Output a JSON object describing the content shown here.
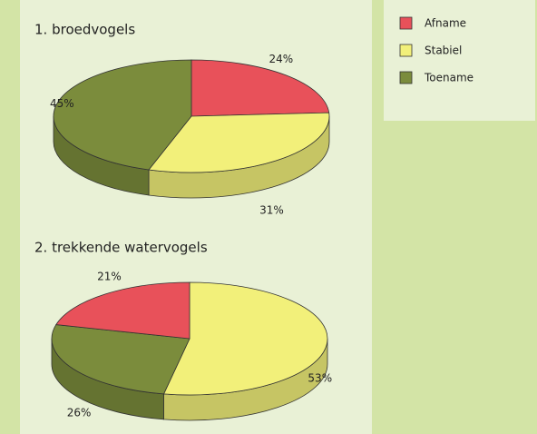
{
  "chart_data": [
    {
      "type": "pie",
      "title": "1. broedvogels",
      "values": [
        24,
        31,
        45
      ],
      "value_labels": [
        "24%",
        "31%",
        "45%"
      ],
      "colors": [
        "#e8515a",
        "#f2f07a",
        "#7b8c3c"
      ]
    },
    {
      "type": "pie",
      "title": "2. trekkende watervogels",
      "values": [
        53,
        26,
        21
      ],
      "value_labels": [
        "53%",
        "26%",
        "21%"
      ],
      "colors": [
        "#f2f07a",
        "#7b8c3c",
        "#e8515a"
      ]
    }
  ],
  "legend": {
    "labels": [
      "Afname",
      "Stabiel",
      "Toename"
    ],
    "colors": [
      "#e8515a",
      "#f2f07a",
      "#7b8c3c"
    ]
  }
}
